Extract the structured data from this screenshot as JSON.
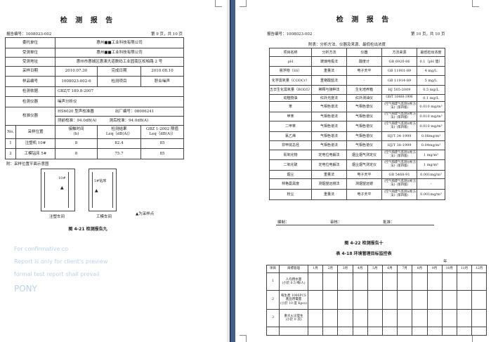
{
  "left": {
    "title": "检 测 报 告",
    "report_no": "报告编号：1008023-002",
    "page_no": "第 9 页，共 10 页",
    "client_label": "委托单位",
    "client": "惠州■■工业科技有限公司",
    "tested_label": "受测单位",
    "tested": "惠州■■工业科技有限公司",
    "address_label": "受测地址",
    "address": "惠州市惠城区惠澳大道数码工业园南区松柏路 2 号",
    "sample_date_label": "采样日期",
    "sample_date": "2010.07.30",
    "finish_date_label": "完成日期",
    "finish_date": "2010.08.10",
    "sample_no_label": "样品编号",
    "sample_no": "1008023-002-6",
    "item_label": "检测项目",
    "item": "职业噪声",
    "basis_label": "检测依据",
    "basis": "GBZ/T 189.8-2007",
    "instrument_label": "检测仪器",
    "instrument": "噪声分析仪",
    "calib_label": "校准仪器",
    "calib_model": "HS6020 型声校准器",
    "calib_serial": "出厂编号：08006241",
    "calib_before": "测前校准：94.0dB(A)",
    "calib_after": "测后校准：94.0dB(A)",
    "headers": [
      "No.",
      "采样位置",
      "接触时间\n(h)",
      "检测结果\nLeq（dB(A)）",
      "GBZ 1-2002 限值\nLeq（dB(A)）"
    ],
    "rows": [
      [
        "1",
        "注塑机 10#",
        "8",
        "82.4",
        "85"
      ],
      [
        "2",
        "工模钻床 5#",
        "8",
        "75.7",
        "85"
      ]
    ],
    "note": "附：采样位置平面示意图",
    "diagram": {
      "label_a": "10#",
      "label_b": "5#钻床",
      "room_a": "注塑车间",
      "room_b": "工模车间",
      "legend": "▲为采样点"
    },
    "caption": "图 4-21 检测报告九"
  },
  "right": {
    "title": "检 测 报 告",
    "report_no": "报告编号：1008023-002",
    "page_no": "第 10 页，共 10 页",
    "table_caption": "附表：分析方法、仪器及来源、最低检出浓度",
    "headers": [
      "项目名称",
      "分析方法",
      "仪器",
      "方法来源",
      "最低检出浓度"
    ],
    "rows": [
      [
        "pH",
        "玻璃电极法",
        "酸度计",
        "GB 6920-86",
        "0.1（pH 值）"
      ],
      [
        "悬浮物（SS）",
        "重量法",
        "电子天平",
        "GB 11901-89",
        "4 mg/L"
      ],
      [
        "化学需氧量（CODCr）",
        "重铬酸盐法",
        "-",
        "GB 11914-89",
        "5 mg/L"
      ],
      [
        "五日生化需氧量（BOD5）",
        "稀释与接种法",
        "生化培养箱",
        "HJ 505-2009",
        "0.5 mg/L"
      ],
      [
        "动植物油",
        "红外光度法",
        "红外测油仪",
        "GB/T 16488-1996",
        "0.1 mg/L"
      ],
      [
        "苯",
        "气相色谱法",
        "气相色谱仪",
        "《空气和废气监测分析方法》(第四版)",
        "0.010 mg/m³"
      ],
      [
        "甲苯",
        "气相色谱法",
        "气相色谱仪",
        "《空气和废气监测分析方法》(第四版)",
        "0.010 mg/m³"
      ],
      [
        "二甲苯",
        "气相色谱法",
        "气相色谱仪",
        "《空气和废气监测分析方法》(第四版)",
        "0.010 mg/m³"
      ],
      [
        "氯乙烯",
        "气相色谱法",
        "气相色谱仪",
        "HJ/T 34-1999",
        "0.08mg/m³"
      ],
      [
        "非甲烷总烃",
        "气相色谱法",
        "气相色谱仪",
        "HJ/T 38-1999",
        "0.04mg/m³"
      ],
      [
        "氮氧化物",
        "定电位电解法",
        "烟尘烟气测定仪",
        "《空气和废气监测分析方法》(第四版)",
        "1 mg/m³"
      ],
      [
        "二氧化硫",
        "定电位电解法",
        "烟尘烟气测定仪",
        "《空气和废气监测分析方法》(第四版)",
        "1 mg/m³"
      ],
      [
        "烟尘",
        "重量法",
        "电子天平",
        "GB 5468-91",
        "0.001mg/m³"
      ],
      [
        "林格曼黑度",
        "测烟望远镜法",
        "测烟望远镜",
        "《空气和废气监测分析方法》(第四版)",
        "-"
      ],
      [
        "粉尘",
        "重量法",
        "电子天平",
        "《空气和废气监测分析方法》(第四版)",
        "0.001mg/m³"
      ]
    ],
    "sign": {
      "compile": "编制：",
      "review": "审核：",
      "approve": "批准："
    },
    "caption": "图 4-22 检测报告十",
    "table2_caption": "表 4-18 环境管理目标监控表",
    "year_label": "年",
    "t2_headers": [
      "项目",
      "目標管理",
      "1月",
      "2月",
      "3月",
      "4月",
      "5月",
      "6月",
      "7月",
      "8月",
      "9月",
      "10月",
      "11月",
      "12月"
    ],
    "t2_rows": [
      [
        "1",
        "人均用水量\n(小於 0.5 噸/人)"
      ],
      [
        "2",
        "每生產 1000PCS\n產品用電量\n(小於 10 度 Kpcs)"
      ],
      [
        "3",
        "重大火災發生\n(小於 0 次)"
      ]
    ]
  },
  "watermarks": [
    "For confirmative co",
    "Report is only for client's preview",
    "formal test report shall prevail",
    "PONY"
  ]
}
